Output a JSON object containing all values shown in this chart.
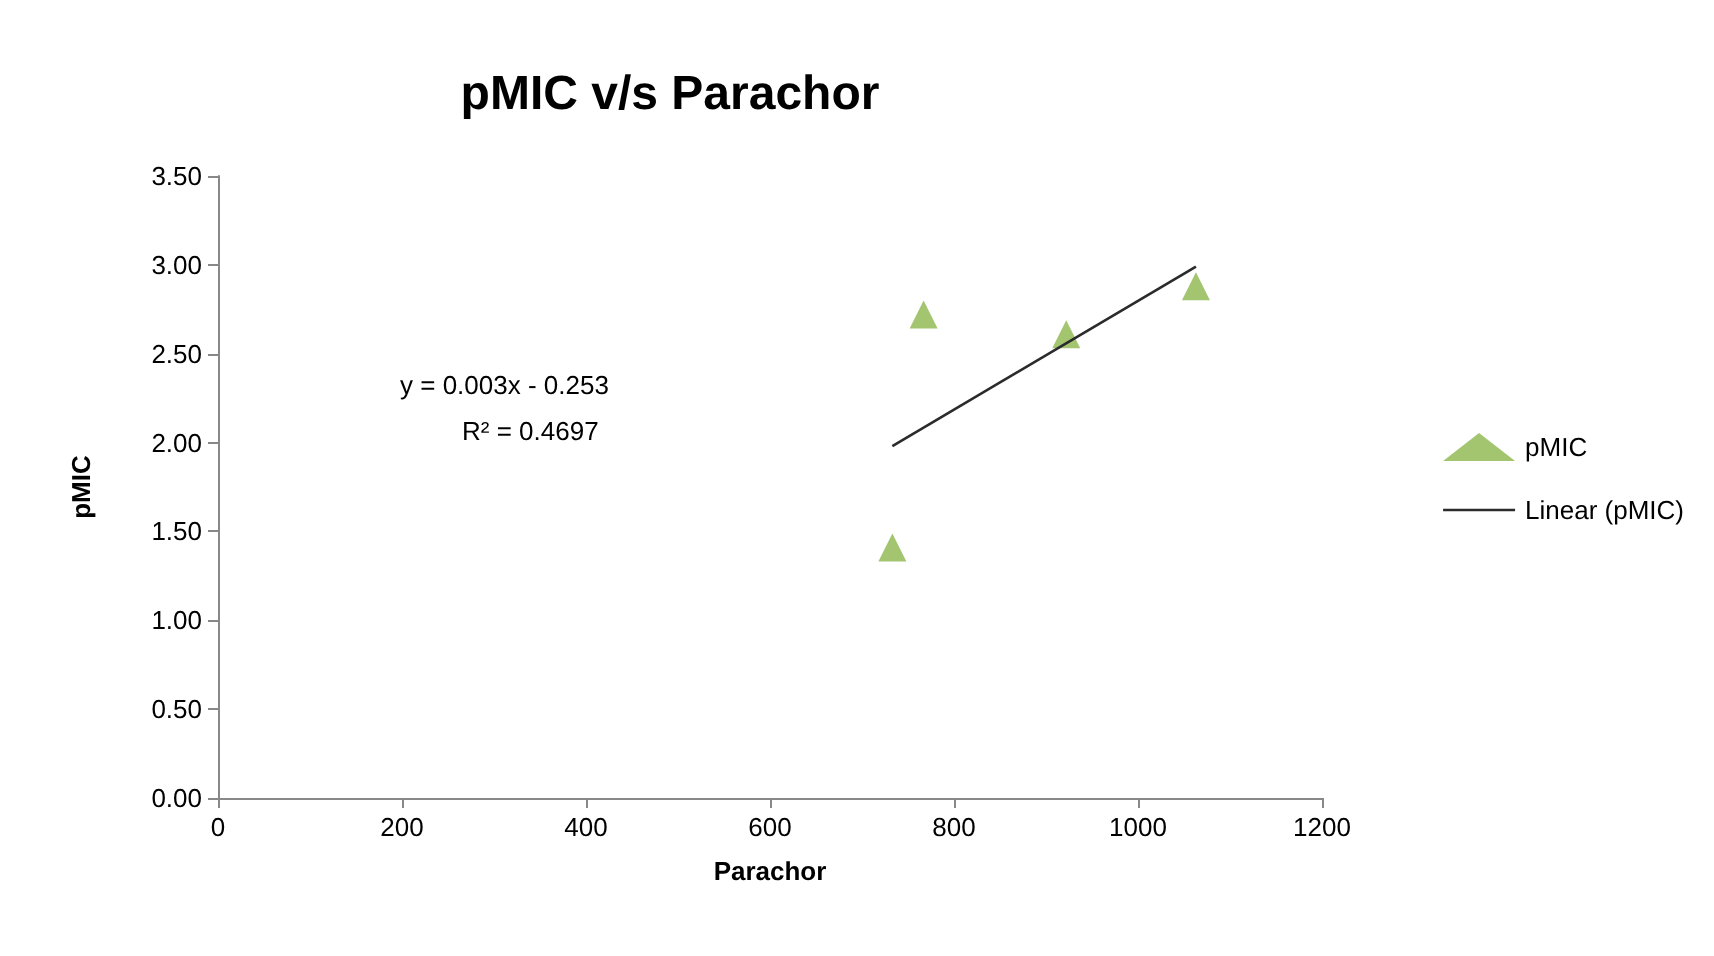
{
  "chart_data": {
    "type": "scatter",
    "title": "pMIC v/s Parachor",
    "xlabel": "Parachor",
    "ylabel": "pMIC",
    "xlim": [
      0,
      1200
    ],
    "xticks": [
      0,
      200,
      400,
      600,
      800,
      1000,
      1200
    ],
    "ylim": [
      0,
      3.5
    ],
    "yticks": [
      {
        "value": 0,
        "label": "0.00"
      },
      {
        "value": 0.5,
        "label": "0.50"
      },
      {
        "value": 1,
        "label": "1.00"
      },
      {
        "value": 1.5,
        "label": "1.50"
      },
      {
        "value": 2,
        "label": "2.00"
      },
      {
        "value": 2.5,
        "label": "2.50"
      },
      {
        "value": 3,
        "label": "3.00"
      },
      {
        "value": 3.5,
        "label": "3.50"
      }
    ],
    "grid": false,
    "legend": "right",
    "series": [
      {
        "name": "pMIC",
        "marker": "triangle",
        "color": "#8db64c",
        "x": [
          733,
          767,
          922,
          1063
        ],
        "values": [
          1.41,
          2.72,
          2.61,
          2.88
        ]
      },
      {
        "name": "Linear (pMIC)",
        "type": "line",
        "marker": "none",
        "line_style": "solid",
        "color": "#2b2b2b",
        "x": [
          733,
          1063
        ],
        "values": [
          1.98,
          2.99
        ]
      }
    ],
    "annotations": [
      "y = 0.003x - 0.253",
      "R² = 0.4697"
    ]
  }
}
